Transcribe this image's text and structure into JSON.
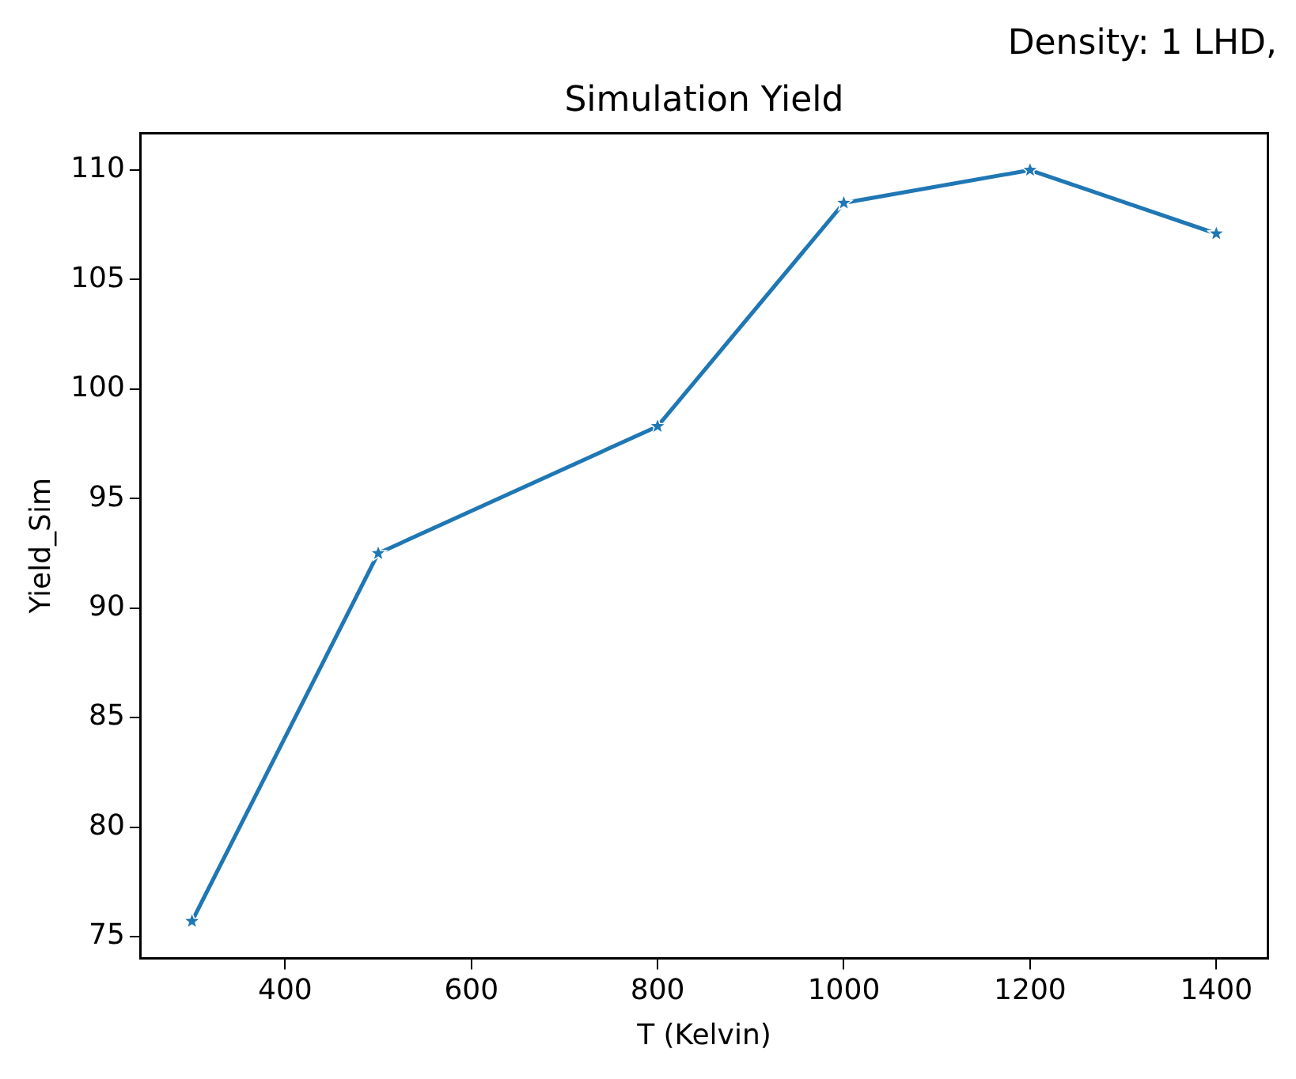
{
  "chart_data": {
    "type": "line",
    "title": "Simulation Yield",
    "subtitle": "Density: 1 LHD,",
    "xlabel": "T (Kelvin)",
    "ylabel": "Yield_Sim",
    "x": [
      300,
      500,
      800,
      1000,
      1200,
      1400
    ],
    "series": [
      {
        "color": "#1f77b4",
        "values": [
          75.7,
          92.5,
          98.3,
          108.5,
          110.0,
          107.1
        ]
      }
    ],
    "xlim": [
      245,
      1455
    ],
    "xticks": [
      400,
      600,
      800,
      1000,
      1200,
      1400
    ],
    "ylim": [
      74.0,
      111.7
    ],
    "yticks": [
      75,
      80,
      85,
      90,
      95,
      100,
      105,
      110
    ],
    "grid": false,
    "legend": false,
    "marker": "star",
    "line_style": "solid"
  }
}
